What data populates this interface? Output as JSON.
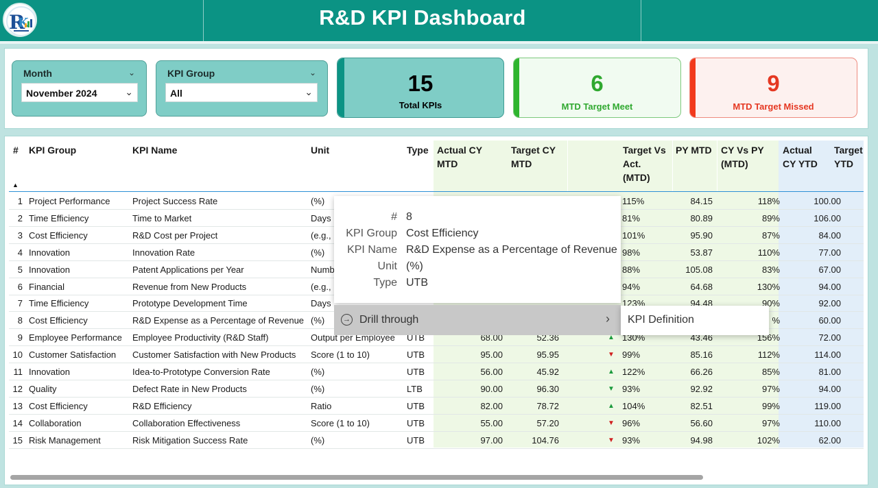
{
  "header": {
    "title": "R&D KPI Dashboard",
    "logo_icon": "rk-logo-icon"
  },
  "slicers": [
    {
      "label": "Month",
      "value": "November 2024"
    },
    {
      "label": "KPI Group",
      "value": "All"
    }
  ],
  "cards": [
    {
      "value": "15",
      "label": "Total KPIs",
      "color": "#000000",
      "bg": "#7fcdc6",
      "accent": "#0b9384"
    },
    {
      "value": "6",
      "label": "MTD Target Meet",
      "color": "#2fa82f",
      "bg": "#f1fbf1",
      "accent": "#2fb52f"
    },
    {
      "value": "9",
      "label": "MTD Target Missed",
      "color": "#e53822",
      "bg": "#fdf1ef",
      "accent": "#f23a1c"
    }
  ],
  "table": {
    "columns": [
      "#",
      "KPI Group",
      "KPI Name",
      "Unit",
      "Type",
      "Actual CY MTD",
      "Target CY MTD",
      "Target Vs Act. (MTD)",
      "PY MTD",
      "CY Vs PY (MTD)",
      "Actual CY YTD",
      "Target YTD"
    ],
    "columns_lines": [
      [
        "#"
      ],
      [
        "KPI Group"
      ],
      [
        "KPI Name"
      ],
      [
        "Unit"
      ],
      [
        "Type"
      ],
      [
        "Actual CY",
        "MTD"
      ],
      [
        "Target CY",
        "MTD"
      ],
      [
        "Target Vs",
        "Act.",
        "(MTD)"
      ],
      [
        "PY MTD"
      ],
      [
        "CY Vs PY",
        "(MTD)"
      ],
      [
        "Actual",
        "CY YTD"
      ],
      [
        "Target",
        "YTD"
      ]
    ],
    "rows": [
      {
        "n": "1",
        "group": "Project Performance",
        "name": "Project Success Rate",
        "unit": "(%)",
        "type": "",
        "act": "",
        "tgt": "",
        "arrow": "",
        "tva": "115%",
        "py": "84.15",
        "cvp": "118%",
        "ytd": "100.00"
      },
      {
        "n": "2",
        "group": "Time Efficiency",
        "name": "Time to Market",
        "unit": "Days",
        "type": "",
        "act": "",
        "tgt": "",
        "arrow": "",
        "tva": "81%",
        "py": "80.89",
        "cvp": "89%",
        "ytd": "106.00"
      },
      {
        "n": "3",
        "group": "Cost Efficiency",
        "name": "R&D Cost per Project",
        "unit": "(e.g.,",
        "type": "",
        "act": "",
        "tgt": "",
        "arrow": "",
        "tva": "101%",
        "py": "95.90",
        "cvp": "87%",
        "ytd": "84.00"
      },
      {
        "n": "4",
        "group": "Innovation",
        "name": "Innovation Rate",
        "unit": "(%)",
        "type": "",
        "act": "",
        "tgt": "",
        "arrow": "",
        "tva": "98%",
        "py": "53.87",
        "cvp": "110%",
        "ytd": "77.00"
      },
      {
        "n": "5",
        "group": "Innovation",
        "name": "Patent Applications per Year",
        "unit": "Numb",
        "type": "",
        "act": "",
        "tgt": "",
        "arrow": "",
        "tva": "88%",
        "py": "105.08",
        "cvp": "83%",
        "ytd": "67.00"
      },
      {
        "n": "6",
        "group": "Financial",
        "name": "Revenue from New Products",
        "unit": "(e.g.,",
        "type": "",
        "act": "",
        "tgt": "",
        "arrow": "",
        "tva": "94%",
        "py": "64.68",
        "cvp": "130%",
        "ytd": "94.00"
      },
      {
        "n": "7",
        "group": "Time Efficiency",
        "name": "Prototype Development Time",
        "unit": "Days",
        "type": "",
        "act": "",
        "tgt": "",
        "arrow": "",
        "tva": "123%",
        "py": "94.48",
        "cvp": "90%",
        "ytd": "92.00"
      },
      {
        "n": "8",
        "group": "Cost Efficiency",
        "name": "R&D Expense as a Percentage of Revenue",
        "unit": "(%)",
        "type": "",
        "act": "",
        "tgt": "",
        "arrow": "",
        "tva": "",
        "py": "",
        "cvp": "%",
        "ytd": "60.00"
      },
      {
        "n": "9",
        "group": "Employee Performance",
        "name": "Employee Productivity (R&D Staff)",
        "unit": "Output per Employee",
        "type": "UTB",
        "act": "68.00",
        "tgt": "52.36",
        "arrow": "up",
        "tva": "130%",
        "py": "43.46",
        "cvp": "156%",
        "ytd": "72.00"
      },
      {
        "n": "10",
        "group": "Customer Satisfaction",
        "name": "Customer Satisfaction with New Products",
        "unit": "Score (1 to 10)",
        "type": "UTB",
        "act": "95.00",
        "tgt": "95.95",
        "arrow": "down",
        "tva": "99%",
        "py": "85.16",
        "cvp": "112%",
        "ytd": "114.00"
      },
      {
        "n": "11",
        "group": "Innovation",
        "name": "Idea-to-Prototype Conversion Rate",
        "unit": "(%)",
        "type": "UTB",
        "act": "56.00",
        "tgt": "45.92",
        "arrow": "up",
        "tva": "122%",
        "py": "66.26",
        "cvp": "85%",
        "ytd": "81.00"
      },
      {
        "n": "12",
        "group": "Quality",
        "name": "Defect Rate in New Products",
        "unit": "(%)",
        "type": "LTB",
        "act": "90.00",
        "tgt": "96.30",
        "arrow": "down-green",
        "tva": "93%",
        "py": "92.92",
        "cvp": "97%",
        "ytd": "94.00"
      },
      {
        "n": "13",
        "group": "Cost Efficiency",
        "name": "R&D Efficiency",
        "unit": "Ratio",
        "type": "UTB",
        "act": "82.00",
        "tgt": "78.72",
        "arrow": "up",
        "tva": "104%",
        "py": "82.51",
        "cvp": "99%",
        "ytd": "119.00"
      },
      {
        "n": "14",
        "group": "Collaboration",
        "name": "Collaboration Effectiveness",
        "unit": "Score (1 to 10)",
        "type": "UTB",
        "act": "55.00",
        "tgt": "57.20",
        "arrow": "down",
        "tva": "96%",
        "py": "56.60",
        "cvp": "97%",
        "ytd": "110.00"
      },
      {
        "n": "15",
        "group": "Risk Management",
        "name": "Risk Mitigation Success Rate",
        "unit": "(%)",
        "type": "UTB",
        "act": "97.00",
        "tgt": "104.76",
        "arrow": "down",
        "tva": "93%",
        "py": "94.98",
        "cvp": "102%",
        "ytd": "62.00"
      }
    ]
  },
  "tooltip": {
    "fields": [
      {
        "key": "#",
        "value": "8"
      },
      {
        "key": "KPI Group",
        "value": "Cost Efficiency"
      },
      {
        "key": "KPI Name",
        "value": "R&D Expense as a Percentage of Revenue"
      },
      {
        "key": "Unit",
        "value": "(%)"
      },
      {
        "key": "Type",
        "value": "UTB"
      }
    ],
    "drill_label": "Drill through",
    "submenu_item": "KPI Definition"
  }
}
